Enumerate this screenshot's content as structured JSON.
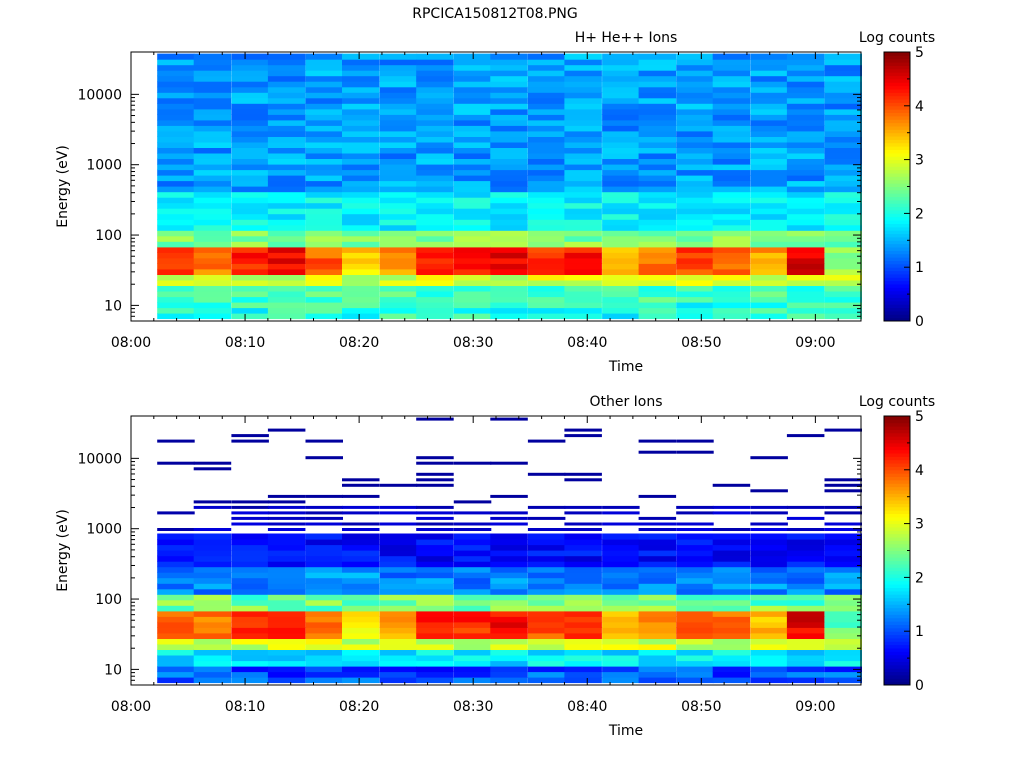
{
  "page_title": "RPCICA150812T08.PNG",
  "chart_data": [
    {
      "type": "heatmap",
      "title": "H+ He++ Ions",
      "xlabel": "Time",
      "ylabel": "Energy (eV)",
      "x_ticks": [
        "08:00",
        "08:10",
        "08:20",
        "08:30",
        "08:40",
        "08:50",
        "09:00"
      ],
      "x_range_minutes": [
        0,
        64
      ],
      "y_scale": "log",
      "y_ticks": [
        "10",
        "100",
        "1000",
        "10000"
      ],
      "y_range": [
        6,
        40000
      ],
      "colorbar_label": "Log counts",
      "colorbar_ticks": [
        "0",
        "1",
        "2",
        "3",
        "4",
        "5"
      ],
      "colorbar_range": [
        0,
        5
      ],
      "colormap": "jet",
      "time_columns_start_minutes": [
        2.3,
        5.5,
        8.8,
        12.0,
        15.3,
        18.5,
        21.8,
        25.0,
        28.3,
        31.5,
        34.8,
        38.0,
        41.3,
        44.5,
        47.8,
        51.0,
        54.3,
        57.5,
        60.8
      ],
      "time_column_width_minutes": 3.25,
      "peak_level_per_column": [
        4.3,
        4.0,
        4.5,
        4.7,
        4.2,
        3.6,
        3.9,
        4.6,
        4.5,
        4.7,
        4.3,
        4.5,
        3.7,
        4.1,
        4.3,
        4.2,
        3.8,
        4.8,
        2.9
      ],
      "background_level": 1.4,
      "missing_top_energy_ev": 40000
    },
    {
      "type": "heatmap",
      "title": "Other Ions",
      "xlabel": "Time",
      "ylabel": "Energy (eV)",
      "x_ticks": [
        "08:00",
        "08:10",
        "08:20",
        "08:30",
        "08:40",
        "08:50",
        "09:00"
      ],
      "x_range_minutes": [
        0,
        64
      ],
      "y_scale": "log",
      "y_ticks": [
        "10",
        "100",
        "1000",
        "10000"
      ],
      "y_range": [
        6,
        40000
      ],
      "colorbar_label": "Log counts",
      "colorbar_ticks": [
        "0",
        "1",
        "2",
        "3",
        "4",
        "5"
      ],
      "colorbar_range": [
        0,
        5
      ],
      "colormap": "jet",
      "time_columns_start_minutes": [
        2.3,
        5.5,
        8.8,
        12.0,
        15.3,
        18.5,
        21.8,
        25.0,
        28.3,
        31.5,
        34.8,
        38.0,
        41.3,
        44.5,
        47.8,
        51.0,
        54.3,
        57.5,
        60.8
      ],
      "time_column_width_minutes": 3.25,
      "peak_level_per_column": [
        4.2,
        4.0,
        4.4,
        4.6,
        4.1,
        3.5,
        3.8,
        4.5,
        4.4,
        4.6,
        4.2,
        4.4,
        3.6,
        4.0,
        4.2,
        4.1,
        3.7,
        4.7,
        2.6
      ],
      "background_level": 0.4,
      "sparse_above_energy_ev": 2000
    }
  ]
}
